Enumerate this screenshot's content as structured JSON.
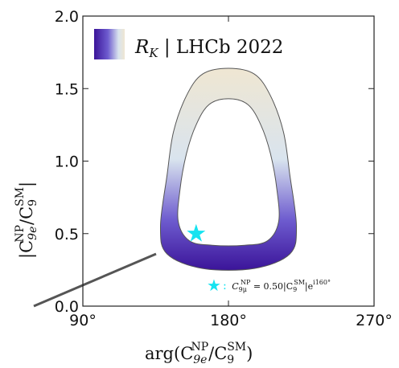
{
  "chart_data": {
    "type": "contour",
    "xlabel_main": "arg(C",
    "xlabel_sub": "9e",
    "xlabel_sup": "NP",
    "xlabel_mid": "/C",
    "xlabel_sub2": "9",
    "xlabel_sup2": "SM",
    "xlabel_end": ")",
    "ylabel_main": "|C",
    "ylabel_sub": "9e",
    "ylabel_sup": "NP",
    "ylabel_mid": "/C",
    "ylabel_sub2": "9",
    "ylabel_sup2": "SM",
    "ylabel_end": "|",
    "xlim": [
      90,
      270
    ],
    "ylim": [
      0.0,
      2.0
    ],
    "xticks": [
      "90°",
      "180°",
      "270°"
    ],
    "yticks": [
      "0.0",
      "0.5",
      "1.0",
      "1.5",
      "2.0"
    ],
    "legend": {
      "position": "top-left",
      "label_main": "R",
      "label_sub": "K",
      "label_rest": " | LHCb 2022",
      "colors": [
        "#3b1499",
        "#6e5ccf",
        "#d9e4ee",
        "#efe6d2"
      ]
    },
    "band": {
      "outer": [
        [
          180,
          1.64
        ],
        [
          196,
          1.6
        ],
        [
          206,
          1.45
        ],
        [
          214,
          1.2
        ],
        [
          218,
          0.9
        ],
        [
          222,
          0.55
        ],
        [
          218,
          0.36
        ],
        [
          196,
          0.26
        ],
        [
          164,
          0.26
        ],
        [
          142,
          0.36
        ],
        [
          138,
          0.55
        ],
        [
          142,
          0.9
        ],
        [
          146,
          1.2
        ],
        [
          154,
          1.45
        ],
        [
          164,
          1.6
        ]
      ],
      "inner": [
        [
          180,
          1.43
        ],
        [
          192,
          1.39
        ],
        [
          200,
          1.25
        ],
        [
          206,
          1.05
        ],
        [
          210,
          0.8
        ],
        [
          211,
          0.58
        ],
        [
          204,
          0.45
        ],
        [
          190,
          0.42
        ],
        [
          170,
          0.42
        ],
        [
          156,
          0.45
        ],
        [
          149,
          0.58
        ],
        [
          150,
          0.8
        ],
        [
          154,
          1.05
        ],
        [
          160,
          1.25
        ],
        [
          168,
          1.39
        ]
      ]
    },
    "star": {
      "x": 160,
      "y": 0.5,
      "color": "#16e3f0"
    },
    "annotation": {
      "symbol": "★",
      "colon": ":",
      "text_c": "C",
      "text_sub": "9μ",
      "text_sup": "NP",
      "text_mid": " = 0.50|C",
      "text_sub2": "9",
      "text_sup2": "SM",
      "text_mid2": "|e",
      "text_sup3": "i160°"
    }
  }
}
